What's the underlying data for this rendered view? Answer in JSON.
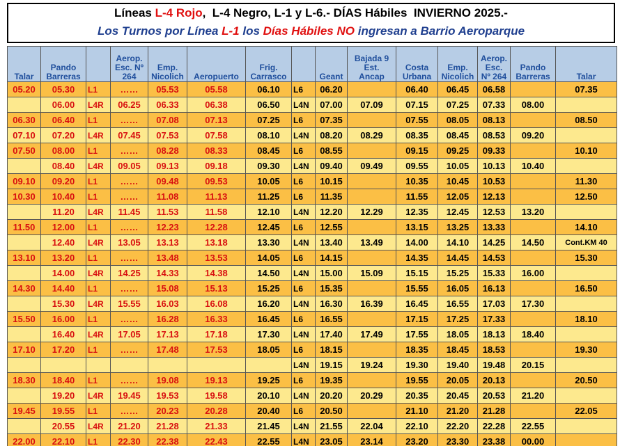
{
  "header": {
    "line1": [
      "Líneas ",
      "L-4 Rojo",
      ",  L-4 Negro, L-1 y L-6.- DÍAS Hábiles  INVIERNO 2025.-"
    ],
    "line2": [
      "Los Turnos por Línea ",
      "L-1",
      " los ",
      "Días Hábiles",
      " ",
      "NO",
      " ingresan a Barrio Aeroparque"
    ]
  },
  "table": {
    "columns": [
      "Talar",
      "Pando\nBarreras",
      null,
      "Aerop.\nEsc. Nº\n264",
      "Emp.\nNicolich",
      "Aeropuerto",
      "Frig.\nCarrasco",
      null,
      "Geant",
      "Bajada 9\nEst.\nAncap",
      "Costa\nUrbana",
      "Emp.\nNicolich",
      "Aerop.\nEsc.\nNº 264",
      "Pando\nBarreras",
      "Talar"
    ],
    "rows": [
      [
        "05.20",
        "05.30",
        "L1",
        "……",
        "05.53",
        "05.58",
        "06.10",
        "L6",
        "06.20",
        null,
        "06.40",
        "06.45",
        "06.58",
        null,
        "07.35"
      ],
      [
        null,
        "06.00",
        "L4R",
        "06.25",
        "06.33",
        "06.38",
        "06.50",
        "L4N",
        "07.00",
        "07.09",
        "07.15",
        "07.25",
        "07.33",
        "08.00",
        null
      ],
      [
        "06.30",
        "06.40",
        "L1",
        "……",
        "07.08",
        "07.13",
        "07.25",
        "L6",
        "07.35",
        null,
        "07.55",
        "08.05",
        "08.13",
        null,
        "08.50"
      ],
      [
        "07.10",
        "07.20",
        "L4R",
        "07.45",
        "07.53",
        "07.58",
        "08.10",
        "L4N",
        "08.20",
        "08.29",
        "08.35",
        "08.45",
        "08.53",
        "09.20",
        null
      ],
      [
        "07.50",
        "08.00",
        "L1",
        "……",
        "08.28",
        "08.33",
        "08.45",
        "L6",
        "08.55",
        null,
        "09.15",
        "09.25",
        "09.33",
        null,
        "10.10"
      ],
      [
        null,
        "08.40",
        "L4R",
        "09.05",
        "09.13",
        "09.18",
        "09.30",
        "L4N",
        "09.40",
        "09.49",
        "09.55",
        "10.05",
        "10.13",
        "10.40",
        null
      ],
      [
        "09.10",
        "09.20",
        "L1",
        "……",
        "09.48",
        "09.53",
        "10.05",
        "L6",
        "10.15",
        null,
        "10.35",
        "10.45",
        "10.53",
        null,
        "11.30"
      ],
      [
        "10.30",
        "10.40",
        "L1",
        "……",
        "11.08",
        "11.13",
        "11.25",
        "L6",
        "11.35",
        null,
        "11.55",
        "12.05",
        "12.13",
        null,
        "12.50"
      ],
      [
        null,
        "11.20",
        "L4R",
        "11.45",
        "11.53",
        "11.58",
        "12.10",
        "L4N",
        "12.20",
        "12.29",
        "12.35",
        "12.45",
        "12.53",
        "13.20",
        null
      ],
      [
        "11.50",
        "12.00",
        "L1",
        "……",
        "12.23",
        "12.28",
        "12.45",
        "L6",
        "12.55",
        null,
        "13.15",
        "13.25",
        "13.33",
        null,
        "14.10"
      ],
      [
        null,
        "12.40",
        "L4R",
        "13.05",
        "13.13",
        "13.18",
        "13.30",
        "L4N",
        "13.40",
        "13.49",
        "14.00",
        "14.10",
        "14.25",
        "14.50",
        "Cont.KM 40"
      ],
      [
        "13.10",
        "13.20",
        "L1",
        "……",
        "13.48",
        "13.53",
        "14.05",
        "L6",
        "14.15",
        null,
        "14.35",
        "14.45",
        "14.53",
        null,
        "15.30"
      ],
      [
        null,
        "14.00",
        "L4R",
        "14.25",
        "14.33",
        "14.38",
        "14.50",
        "L4N",
        "15.00",
        "15.09",
        "15.15",
        "15.25",
        "15.33",
        "16.00",
        null
      ],
      [
        "14.30",
        "14.40",
        "L1",
        "……",
        "15.08",
        "15.13",
        "15.25",
        "L6",
        "15.35",
        null,
        "15.55",
        "16.05",
        "16.13",
        null,
        "16.50"
      ],
      [
        null,
        "15.30",
        "L4R",
        "15.55",
        "16.03",
        "16.08",
        "16.20",
        "L4N",
        "16.30",
        "16.39",
        "16.45",
        "16.55",
        "17.03",
        "17.30",
        null
      ],
      [
        "15.50",
        "16.00",
        "L1",
        "……",
        "16.28",
        "16.33",
        "16.45",
        "L6",
        "16.55",
        null,
        "17.15",
        "17.25",
        "17.33",
        null,
        "18.10"
      ],
      [
        null,
        "16.40",
        "L4R",
        "17.05",
        "17.13",
        "17.18",
        "17.30",
        "L4N",
        "17.40",
        "17.49",
        "17.55",
        "18.05",
        "18.13",
        "18.40",
        null
      ],
      [
        "17.10",
        "17.20",
        "L1",
        "……",
        "17.48",
        "17.53",
        "18.05",
        "L6",
        "18.15",
        null,
        "18.35",
        "18.45",
        "18.53",
        null,
        "19.30"
      ],
      [
        null,
        null,
        null,
        null,
        null,
        null,
        null,
        "L4N",
        "19.15",
        "19.24",
        "19.30",
        "19.40",
        "19.48",
        "20.15",
        null
      ],
      [
        "18.30",
        "18.40",
        "L1",
        "……",
        "19.08",
        "19.13",
        "19.25",
        "L6",
        "19.35",
        null,
        "19.55",
        "20.05",
        "20.13",
        null,
        "20.50"
      ],
      [
        null,
        "19.20",
        "L4R",
        "19.45",
        "19.53",
        "19.58",
        "20.10",
        "L4N",
        "20.20",
        "20.29",
        "20.35",
        "20.45",
        "20.53",
        "21.20",
        null
      ],
      [
        "19.45",
        "19.55",
        "L1",
        "……",
        "20.23",
        "20.28",
        "20.40",
        "L6",
        "20.50",
        null,
        "21.10",
        "21.20",
        "21.28",
        null,
        "22.05"
      ],
      [
        null,
        "20.55",
        "L4R",
        "21.20",
        "21.28",
        "21.33",
        "21.45",
        "L4N",
        "21.55",
        "22.04",
        "22.10",
        "22.20",
        "22.28",
        "22.55",
        null
      ],
      [
        "22.00",
        "22.10",
        "L1",
        "22.30",
        "22.38",
        "22.43",
        "22.55",
        "L4N",
        "23.05",
        "23.14",
        "23.20",
        "23.30",
        "23.38",
        "00.00",
        null
      ]
    ]
  }
}
